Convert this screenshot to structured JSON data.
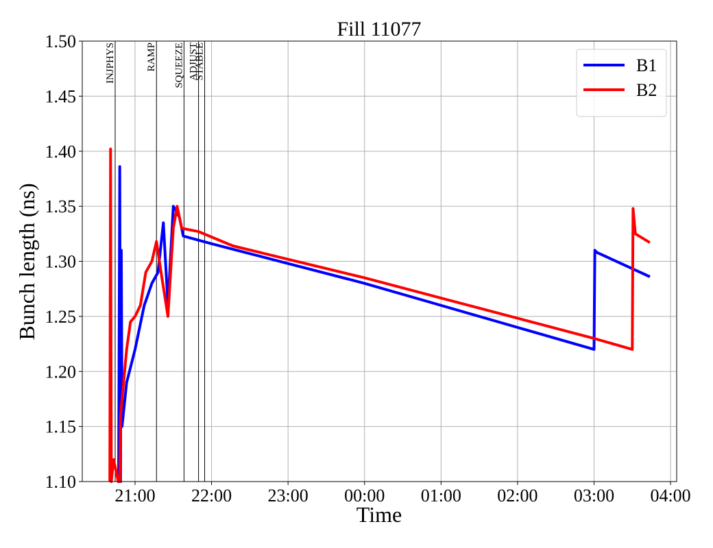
{
  "chart_data": {
    "type": "line",
    "title": "Fill 11077",
    "xlabel": "Time",
    "ylabel": "Bunch length (ns)",
    "xlim": [
      20.31,
      28.08
    ],
    "ylim": [
      1.1,
      1.5
    ],
    "xticks": [
      {
        "value": 21,
        "label": "21:00"
      },
      {
        "value": 22,
        "label": "22:00"
      },
      {
        "value": 23,
        "label": "23:00"
      },
      {
        "value": 24,
        "label": "00:00"
      },
      {
        "value": 25,
        "label": "01:00"
      },
      {
        "value": 26,
        "label": "02:00"
      },
      {
        "value": 27,
        "label": "03:00"
      },
      {
        "value": 28,
        "label": "04:00"
      }
    ],
    "yticks": [
      {
        "value": 1.1,
        "label": "1.10"
      },
      {
        "value": 1.15,
        "label": "1.15"
      },
      {
        "value": 1.2,
        "label": "1.20"
      },
      {
        "value": 1.25,
        "label": "1.25"
      },
      {
        "value": 1.3,
        "label": "1.30"
      },
      {
        "value": 1.35,
        "label": "1.35"
      },
      {
        "value": 1.4,
        "label": "1.40"
      },
      {
        "value": 1.45,
        "label": "1.45"
      },
      {
        "value": 1.5,
        "label": "1.50"
      }
    ],
    "grid": true,
    "legend": "upper right",
    "annotations": [
      {
        "x": 20.74,
        "label": "INJPHYS"
      },
      {
        "x": 21.28,
        "label": "RAMP"
      },
      {
        "x": 21.64,
        "label": "SQUEEZE"
      },
      {
        "x": 21.83,
        "label": "ADJUST"
      },
      {
        "x": 21.91,
        "label": "STABLE"
      }
    ],
    "series": [
      {
        "name": "B1",
        "color": "#0000ff",
        "x": [
          20.785,
          20.8,
          20.81,
          20.82,
          20.83,
          20.89,
          21.0,
          21.12,
          21.22,
          21.3,
          21.37,
          21.43,
          21.5,
          21.58,
          21.63,
          22.0,
          24.0,
          27.0,
          27.01,
          27.04,
          27.73
        ],
        "values": [
          1.1,
          1.386,
          1.1,
          1.31,
          1.15,
          1.19,
          1.22,
          1.26,
          1.28,
          1.29,
          1.335,
          1.26,
          1.35,
          1.34,
          1.323,
          1.316,
          1.28,
          1.22,
          1.31,
          1.308,
          1.286
        ]
      },
      {
        "name": "B2",
        "color": "#ff0000",
        "x": [
          20.67,
          20.68,
          20.69,
          20.72,
          20.78,
          20.8,
          20.81,
          20.89,
          20.94,
          21.0,
          21.07,
          21.14,
          21.22,
          21.28,
          21.34,
          21.43,
          21.5,
          21.55,
          21.61,
          21.83,
          22.28,
          24.0,
          27.0,
          27.5,
          27.51,
          27.54,
          27.73
        ],
        "values": [
          1.1,
          1.402,
          1.1,
          1.12,
          1.1,
          1.1,
          1.16,
          1.22,
          1.245,
          1.25,
          1.26,
          1.29,
          1.3,
          1.318,
          1.29,
          1.25,
          1.33,
          1.35,
          1.33,
          1.327,
          1.314,
          1.285,
          1.23,
          1.22,
          1.348,
          1.325,
          1.317
        ]
      }
    ]
  }
}
